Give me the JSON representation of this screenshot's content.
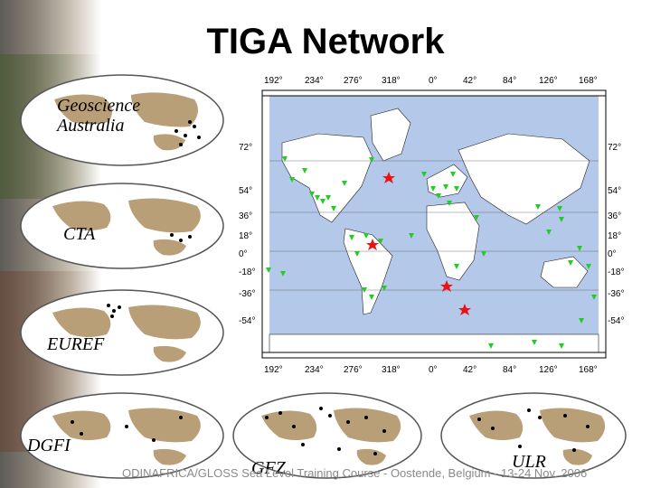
{
  "slide": {
    "title": "TIGA Network",
    "footer": "ODINAFRICA/GLOSS Sea Level Training Course - Oostende, Belgium - 13-24 Nov. 2006"
  },
  "mini_maps": [
    {
      "label": "Geoscience\nAustralia"
    },
    {
      "label": "CTA"
    },
    {
      "label": "EUREF"
    },
    {
      "label": "DGFI"
    },
    {
      "label": "GFZ"
    },
    {
      "label": "ULR"
    }
  ],
  "main_map": {
    "top_ticks": [
      "192°",
      "234°",
      "276°",
      "318°",
      "0°",
      "42°",
      "84°",
      "126°",
      "168°"
    ],
    "bottom_ticks": [
      "192°",
      "234°",
      "276°",
      "318°",
      "0°",
      "42°",
      "84°",
      "126°",
      "168°"
    ],
    "left_ticks": [
      "72°",
      "54°",
      "36°",
      "18°",
      "0°",
      "-18°",
      "-36°",
      "-54°"
    ],
    "right_ticks": [
      "72°",
      "54°",
      "36°",
      "18°",
      "0°",
      "-18°",
      "-36°",
      "-54°"
    ],
    "colors": {
      "ocean": "#b4c8ea",
      "land": "#ffffff",
      "station": "#22cc22",
      "star": "#ee1111"
    }
  }
}
